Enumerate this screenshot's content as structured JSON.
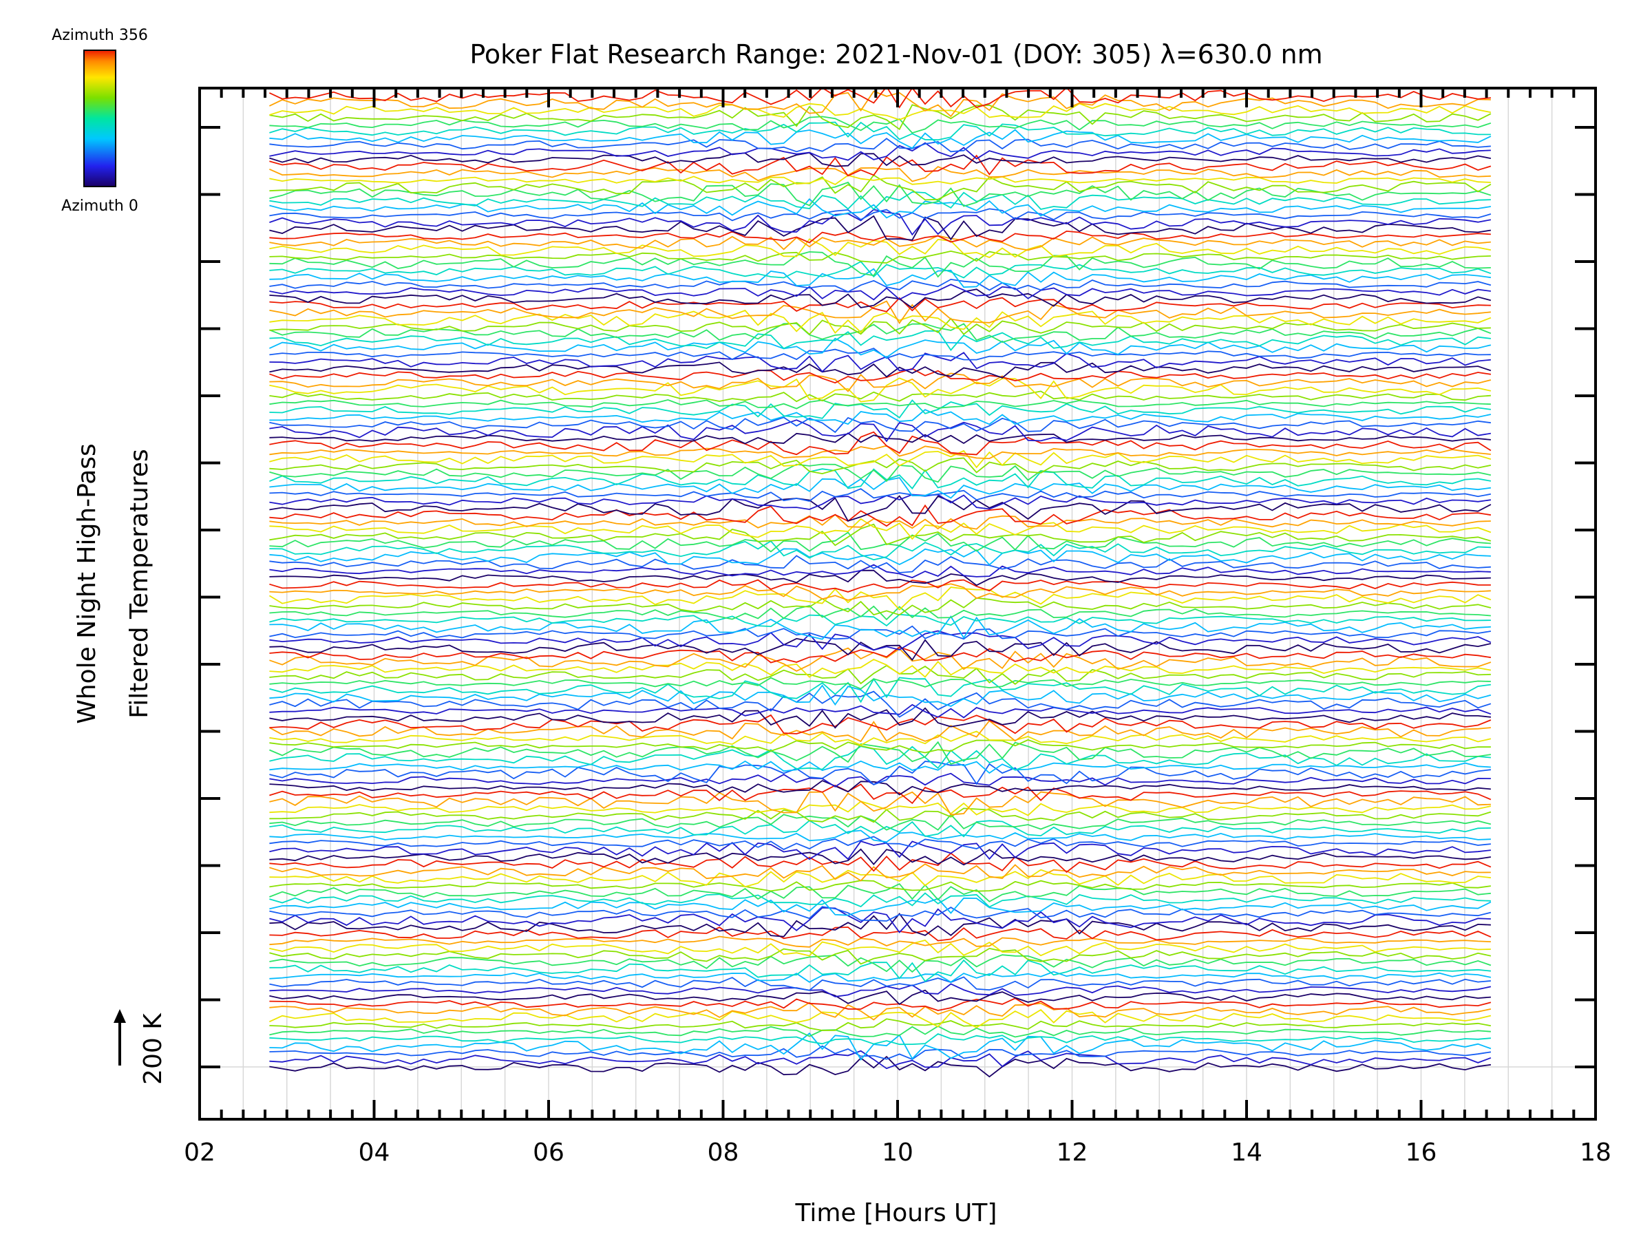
{
  "chart_data": {
    "type": "line",
    "title": "Poker Flat Research Range: 2021-Nov-01 (DOY: 305) λ=630.0 nm",
    "xlabel": "Time [Hours UT]",
    "ylabel_line1": "Whole Night High-Pass",
    "ylabel_line2": "Filtered Temperatures",
    "scale_label": "200 K",
    "xlim": [
      2,
      18
    ],
    "x_ticks": [
      "02",
      "04",
      "06",
      "08",
      "10",
      "12",
      "14",
      "16",
      "18"
    ],
    "x_data_range": [
      2.8,
      16.8
    ],
    "grid": "vertical",
    "colorbar": {
      "top_label": "Azimuth 356",
      "bottom_label": "Azimuth 0",
      "colormap": "rainbow",
      "range": [
        0,
        356
      ],
      "placement": "top-left"
    },
    "series_count": 14,
    "traces_per_group": 10,
    "colors": {
      "frame": "#000000",
      "grid": "#d8d8d8",
      "background": "#ffffff"
    }
  }
}
